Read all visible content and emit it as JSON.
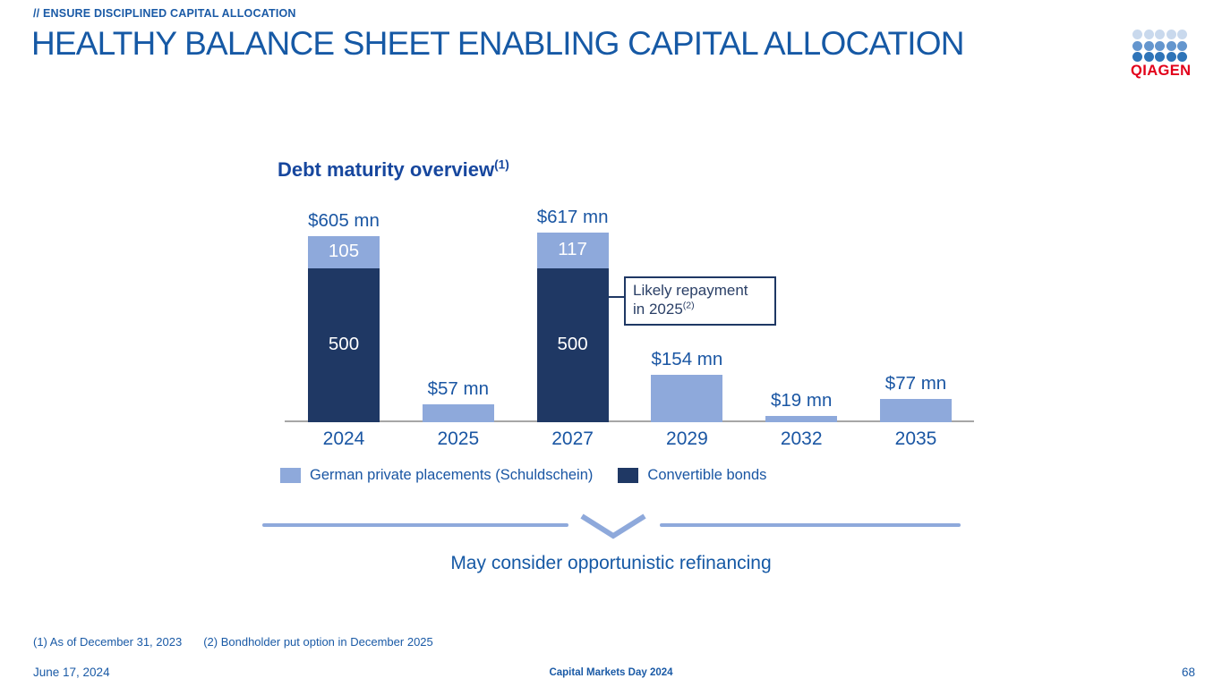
{
  "slide": {
    "eyebrow": "// ENSURE DISCIPLINED CAPITAL ALLOCATION",
    "title": "HEALTHY BALANCE SHEET ENABLING CAPITAL ALLOCATION"
  },
  "logo": {
    "brand": "QIAGEN",
    "brand_color": "#e2001a",
    "dot_rows": [
      "#c9d9ed",
      "#6496ce",
      "#2e74b8"
    ]
  },
  "chart": {
    "title": "Debt maturity overview",
    "title_superscript": "(1)",
    "callout": {
      "line1": "Likely repayment",
      "line2": "in 2025",
      "superscript": "(2)"
    },
    "legend": [
      {
        "label": "German private placements (Schuldschein)",
        "color": "#8ea9db"
      },
      {
        "label": "Convertible bonds",
        "color": "#1f3864"
      }
    ]
  },
  "chart_data": {
    "type": "bar",
    "stacked": true,
    "title": "Debt maturity overview(1)",
    "unit": "$ mn",
    "categories": [
      "2024",
      "2025",
      "2027",
      "2029",
      "2032",
      "2035"
    ],
    "series": [
      {
        "name": "Convertible bonds",
        "color": "#1f3864",
        "values": [
          500,
          0,
          500,
          0,
          0,
          0
        ]
      },
      {
        "name": "German private placements (Schuldschein)",
        "color": "#8ea9db",
        "values": [
          105,
          57,
          117,
          154,
          19,
          77
        ]
      }
    ],
    "totals": [
      605,
      57,
      617,
      154,
      19,
      77
    ],
    "total_labels": [
      "$605 mn",
      "$57 mn",
      "$617 mn",
      "$154 mn",
      "$19 mn",
      "$77 mn"
    ],
    "ylim": [
      0,
      650
    ],
    "grid": false,
    "legend_position": "bottom",
    "annotations": [
      {
        "text": "Likely repayment in 2025(2)",
        "target_category": "2027"
      }
    ]
  },
  "banner": {
    "text": "May consider opportunistic refinancing"
  },
  "footnotes": {
    "f1": "(1) As of December 31, 2023",
    "f2": "(2) Bondholder put option in December 2025"
  },
  "footer": {
    "date": "June 17, 2024",
    "center": "Capital Markets Day 2024",
    "page": "68"
  },
  "colors": {
    "text_blue": "#1a5aa6",
    "navy": "#1f3864",
    "light_blue": "#8ea9db",
    "axis_gray": "#a6a6a6"
  }
}
